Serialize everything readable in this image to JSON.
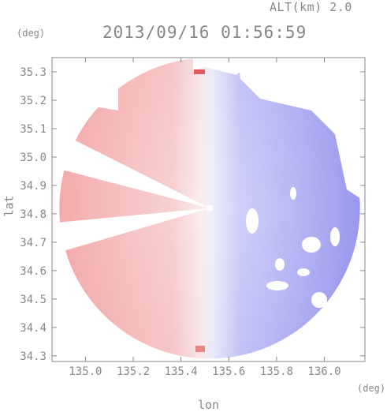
{
  "header": {
    "altitude_label": "ALT(km) 2.0",
    "datetime": "2013/09/16 01:56:59"
  },
  "chart_data": {
    "type": "heatmap",
    "title": "2013/09/16 01:56:59",
    "subtitle": "ALT(km) 2.0",
    "xlabel": "lon",
    "ylabel": "lat",
    "x_unit": "(deg)",
    "y_unit": "(deg)",
    "xlim": [
      134.86,
      136.17
    ],
    "ylim": [
      34.28,
      35.35
    ],
    "x_ticks": [
      135.0,
      135.2,
      135.4,
      135.6,
      135.8,
      136.0
    ],
    "x_tick_labels": [
      "135.0",
      "135.2",
      "135.4",
      "135.6",
      "135.8",
      "136.0"
    ],
    "y_ticks": [
      34.3,
      34.4,
      34.5,
      34.6,
      34.7,
      34.8,
      34.9,
      35.0,
      35.1,
      35.2,
      35.3
    ],
    "y_tick_labels": [
      "34.3",
      "34.4",
      "34.5",
      "34.6",
      "34.7",
      "34.8",
      "34.9",
      "35.0",
      "35.1",
      "35.2",
      "35.3"
    ],
    "grid": false,
    "radar_center": {
      "lon": 135.52,
      "lat": 34.82
    },
    "radar_radius_deg_lat": 0.53,
    "colors": {
      "approaching_west": "#f3a8a8",
      "receding_east": "#9a9af2",
      "near_zero": "#f4f4fb",
      "strong_echo": "#e55b5b"
    }
  }
}
